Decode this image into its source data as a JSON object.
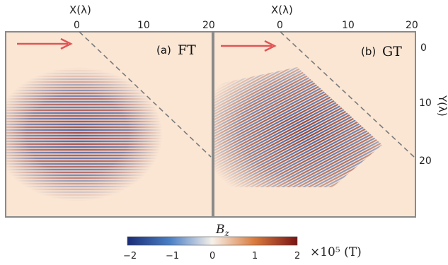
{
  "figure": {
    "top_axis_label_left": "X(λ)",
    "top_axis_label_right": "X(λ)",
    "right_axis_label": "Y(λ)",
    "panels": [
      {
        "label": "(a)",
        "name": "FT",
        "x_ticks": [
          "0",
          "10",
          "20"
        ]
      },
      {
        "label": "(b)",
        "name": "GT",
        "x_ticks": [
          "0",
          "10",
          "20"
        ],
        "y_ticks": [
          "0",
          "10",
          "20"
        ]
      }
    ],
    "colorbar": {
      "title": "B",
      "title_sub": "z",
      "ticks": [
        "−2",
        "−1",
        "0",
        "1",
        "2"
      ],
      "unit": "×10⁵ (T)",
      "range": [
        -2,
        2
      ],
      "colors": [
        "#1a2c78",
        "#4a7fc6",
        "#f7f1ea",
        "#d97a3c",
        "#7a1414"
      ]
    },
    "arrow_color": "#e05555",
    "background_color": "#fbe6d4"
  }
}
